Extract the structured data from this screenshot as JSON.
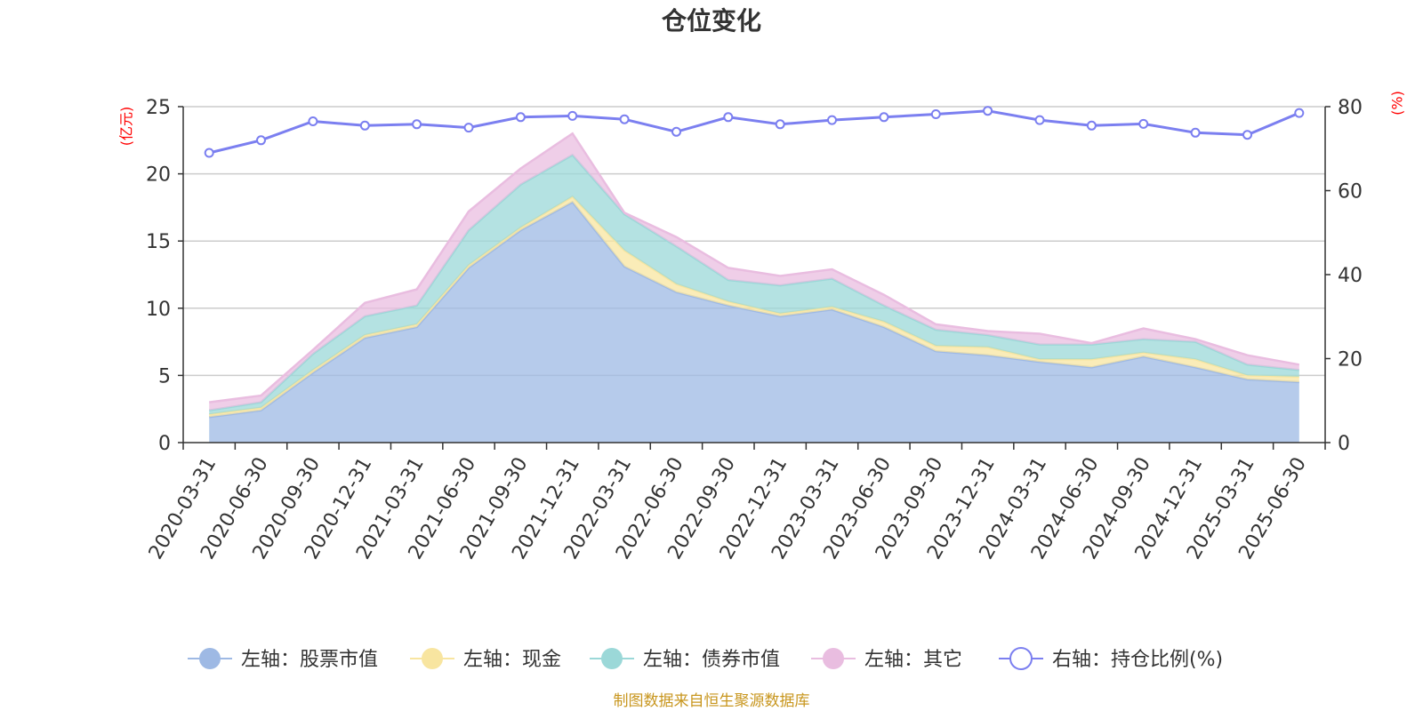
{
  "chart_data": {
    "type": "area",
    "title": "仓位变化",
    "left_axis_unit": "(亿元)",
    "right_axis_unit": "(%)",
    "x": [
      "2020-03-31",
      "2020-06-30",
      "2020-09-30",
      "2020-12-31",
      "2021-03-31",
      "2021-06-30",
      "2021-09-30",
      "2021-12-31",
      "2022-03-31",
      "2022-06-30",
      "2022-09-30",
      "2022-12-31",
      "2023-03-31",
      "2023-06-30",
      "2023-09-30",
      "2023-12-31",
      "2024-03-31",
      "2024-06-30",
      "2024-09-30",
      "2024-12-31",
      "2025-03-31",
      "2025-06-30"
    ],
    "left_axis": {
      "min": 0,
      "max": 25,
      "ticks": [
        0,
        5,
        10,
        15,
        20,
        25
      ]
    },
    "right_axis": {
      "min": 0,
      "max": 80,
      "ticks": [
        0,
        20,
        40,
        60,
        80
      ]
    },
    "series": [
      {
        "name": "左轴：股票市值",
        "type": "stacked-area",
        "axis": "left",
        "color": "#9eb9e4",
        "values": [
          1.9,
          2.4,
          5.2,
          7.8,
          8.6,
          13.0,
          15.8,
          17.9,
          13.1,
          11.2,
          10.2,
          9.4,
          9.9,
          8.6,
          6.8,
          6.5,
          6.0,
          5.6,
          6.4,
          5.6,
          4.7,
          4.5
        ]
      },
      {
        "name": "左轴：现金",
        "type": "stacked-area",
        "axis": "left",
        "color": "#f8e5a0",
        "values": [
          0.2,
          0.2,
          0.2,
          0.2,
          0.2,
          0.2,
          0.2,
          0.4,
          1.2,
          0.6,
          0.3,
          0.2,
          0.2,
          0.4,
          0.4,
          0.6,
          0.2,
          0.6,
          0.3,
          0.6,
          0.3,
          0.4
        ]
      },
      {
        "name": "左轴：债券市值",
        "type": "stacked-area",
        "axis": "left",
        "color": "#9bd8d8",
        "values": [
          0.3,
          0.4,
          1.2,
          1.4,
          1.4,
          2.6,
          3.2,
          3.1,
          2.7,
          2.8,
          1.6,
          2.1,
          2.1,
          1.2,
          1.2,
          0.9,
          1.1,
          1.1,
          1.0,
          1.3,
          0.8,
          0.5
        ]
      },
      {
        "name": "左轴：其它",
        "type": "stacked-area",
        "axis": "left",
        "color": "#e9bde0",
        "values": [
          0.6,
          0.5,
          0.3,
          1.0,
          1.2,
          1.4,
          1.2,
          1.6,
          0.1,
          0.7,
          0.9,
          0.7,
          0.7,
          0.8,
          0.4,
          0.3,
          0.8,
          0.1,
          0.8,
          0.2,
          0.7,
          0.4
        ]
      },
      {
        "name": "右轴：持仓比例(%)",
        "type": "line",
        "axis": "right",
        "color": "#7b7ff0",
        "values": [
          69.0,
          72.0,
          76.5,
          75.5,
          75.8,
          75.0,
          77.5,
          77.8,
          77.0,
          74.0,
          77.5,
          75.8,
          76.8,
          77.5,
          78.2,
          79.0,
          76.8,
          75.5,
          75.9,
          73.8,
          73.3,
          78.5
        ]
      }
    ],
    "grid": true,
    "legend_position": "bottom"
  },
  "source_note": "制图数据来自恒生聚源数据库"
}
